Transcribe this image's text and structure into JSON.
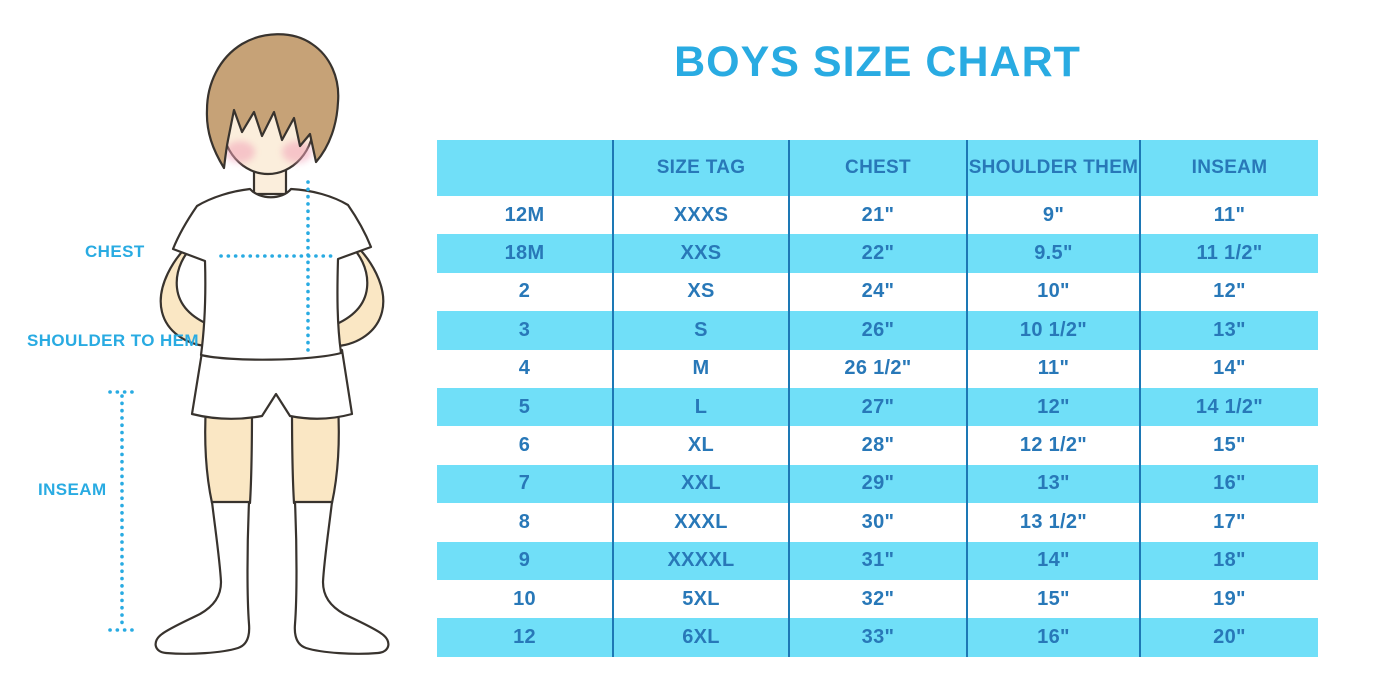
{
  "title": "BOYS SIZE CHART",
  "colors": {
    "accent": "#29ABE2",
    "table_band": "#70DFF8",
    "table_text": "#2878B8",
    "grid_line": "#1D78B5",
    "hair": "#C6A277",
    "skin": "#FAE7C4",
    "outline": "#38332E"
  },
  "figure": {
    "labels": {
      "chest": "CHEST",
      "shoulder_to_hem": "SHOULDER TO HEM",
      "inseam": "INSEAM"
    }
  },
  "chart_data": {
    "type": "table",
    "title": "BOYS SIZE CHART",
    "columns": [
      "",
      "SIZE TAG",
      "CHEST",
      "SHOULDER THEM",
      "INSEAM"
    ],
    "rows": [
      [
        "12M",
        "XXXS",
        "21\"",
        "9\"",
        "11\""
      ],
      [
        "18M",
        "XXS",
        "22\"",
        "9.5\"",
        "11 1/2\""
      ],
      [
        "2",
        "XS",
        "24\"",
        "10\"",
        "12\""
      ],
      [
        "3",
        "S",
        "26\"",
        "10 1/2\"",
        "13\""
      ],
      [
        "4",
        "M",
        "26 1/2\"",
        "11\"",
        "14\""
      ],
      [
        "5",
        "L",
        "27\"",
        "12\"",
        "14 1/2\""
      ],
      [
        "6",
        "XL",
        "28\"",
        "12 1/2\"",
        "15\""
      ],
      [
        "7",
        "XXL",
        "29\"",
        "13\"",
        "16\""
      ],
      [
        "8",
        "XXXL",
        "30\"",
        "13 1/2\"",
        "17\""
      ],
      [
        "9",
        "XXXXL",
        "31\"",
        "14\"",
        "18\""
      ],
      [
        "10",
        "5XL",
        "32\"",
        "15\"",
        "19\""
      ],
      [
        "12",
        "6XL",
        "33\"",
        "16\"",
        "20\""
      ]
    ],
    "layout": {
      "striped": true,
      "stripe_starts_with_header": true,
      "vertical_dividers_only": true
    }
  }
}
